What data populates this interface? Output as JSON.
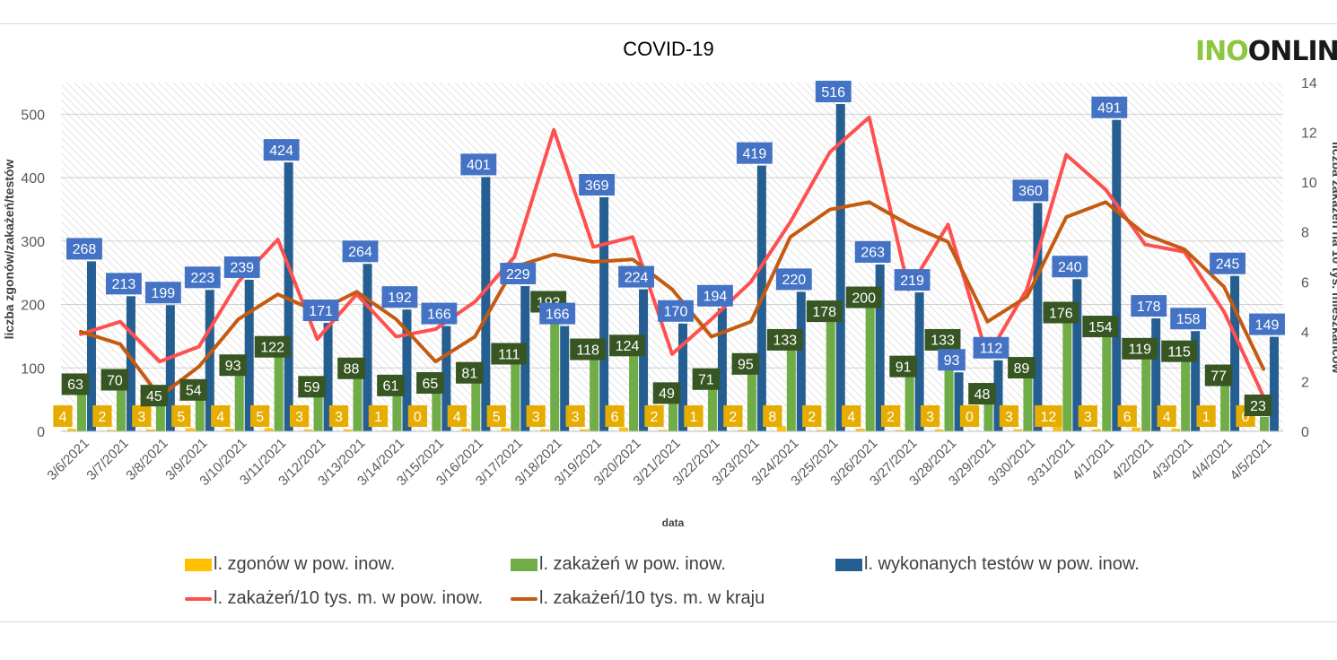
{
  "chart_data": {
    "type": "bar",
    "title": "COVID-19",
    "logo_text": "INO·ONLINE",
    "xlabel": "data",
    "ylabel_left": "liczba zgonów/zakażeń/testów",
    "ylabel_right": "liczba zakażeń na 10 tys. mieszkańców",
    "ylim_left": [
      0,
      550
    ],
    "yticks_left": [
      0,
      100,
      200,
      300,
      400,
      500
    ],
    "ylim_right": [
      0,
      14
    ],
    "yticks_right": [
      0,
      2,
      4,
      6,
      8,
      10,
      12,
      14
    ],
    "grid": true,
    "legend_position": "bottom",
    "categories": [
      "3/6/2021",
      "3/7/2021",
      "3/8/2021",
      "3/9/2021",
      "3/10/2021",
      "3/11/2021",
      "3/12/2021",
      "3/13/2021",
      "3/14/2021",
      "3/15/2021",
      "3/16/2021",
      "3/17/2021",
      "3/18/2021",
      "3/19/2021",
      "3/20/2021",
      "3/21/2021",
      "3/22/2021",
      "3/23/2021",
      "3/24/2021",
      "3/25/2021",
      "3/26/2021",
      "3/27/2021",
      "3/28/2021",
      "3/29/2021",
      "3/30/2021",
      "3/31/2021",
      "4/1/2021",
      "4/2/2021",
      "4/3/2021",
      "4/4/2021",
      "4/5/2021"
    ],
    "bar_series": [
      {
        "name": "l. zgonów w pow. inow.",
        "color": "#ffc000",
        "label_bg": "#e6ad00",
        "label_fg": "#ffffff",
        "values": [
          4,
          2,
          3,
          5,
          4,
          5,
          3,
          3,
          1,
          0,
          4,
          5,
          3,
          3,
          6,
          2,
          1,
          2,
          8,
          2,
          4,
          2,
          3,
          0,
          3,
          12,
          3,
          6,
          4,
          1,
          0
        ]
      },
      {
        "name": "l. zakażeń w pow. inow.",
        "color": "#70ad47",
        "label_bg": "#375623",
        "label_fg": "#ffffff",
        "values": [
          63,
          70,
          45,
          54,
          93,
          122,
          59,
          88,
          61,
          65,
          81,
          111,
          193,
          118,
          124,
          49,
          71,
          95,
          133,
          178,
          200,
          91,
          133,
          48,
          89,
          176,
          154,
          119,
          115,
          77,
          23
        ]
      },
      {
        "name": "l. wykonanych testów w pow. inow.",
        "color": "#255e91",
        "label_bg": "#4472c4",
        "label_fg": "#ffffff",
        "values": [
          268,
          213,
          199,
          223,
          239,
          424,
          171,
          264,
          192,
          166,
          401,
          229,
          166,
          369,
          224,
          170,
          194,
          419,
          220,
          516,
          263,
          219,
          93,
          112,
          360,
          240,
          491,
          178,
          158,
          245,
          149
        ]
      }
    ],
    "line_series": [
      {
        "name": "l. zakażeń/10 tys. m. w pow. inow.",
        "color": "#ff5050",
        "values": [
          3.9,
          4.4,
          2.8,
          3.4,
          6.0,
          7.7,
          3.7,
          5.5,
          3.8,
          4.1,
          5.2,
          7.0,
          12.1,
          7.4,
          7.8,
          3.1,
          4.5,
          6.0,
          8.4,
          11.2,
          12.6,
          5.7,
          8.3,
          3.0,
          5.7,
          11.1,
          9.7,
          7.5,
          7.2,
          4.8,
          1.4
        ]
      },
      {
        "name": "l. zakażeń/10 tys. m. w kraju",
        "color": "#c55a11",
        "values": [
          4.0,
          3.5,
          1.4,
          2.6,
          4.5,
          5.5,
          4.8,
          5.6,
          4.5,
          2.8,
          3.8,
          6.6,
          7.1,
          6.8,
          6.9,
          5.7,
          3.8,
          4.4,
          7.8,
          8.9,
          9.2,
          8.3,
          7.6,
          4.4,
          5.4,
          8.6,
          9.2,
          7.9,
          7.3,
          5.8,
          2.5
        ]
      }
    ]
  }
}
